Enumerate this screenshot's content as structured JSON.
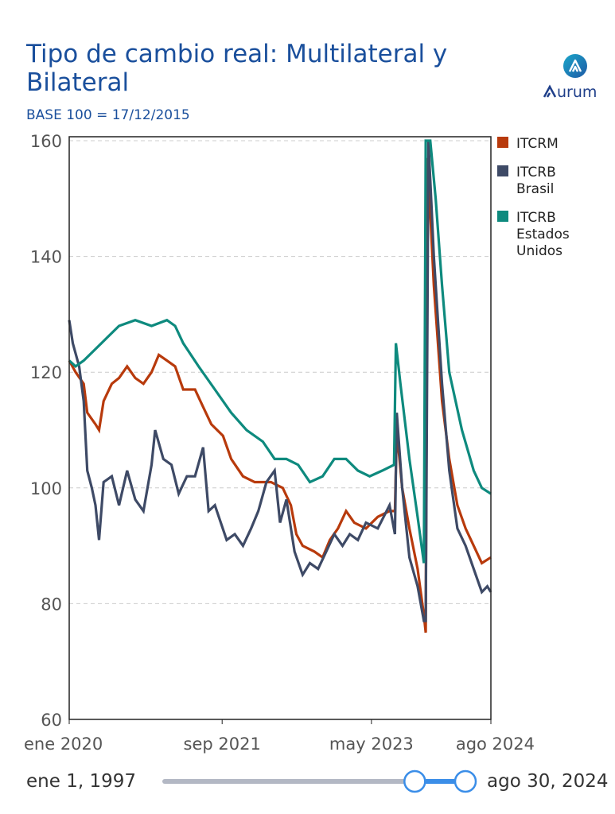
{
  "title": "Tipo de cambio real: Multilateral y Bilateral",
  "subtitle": "BASE 100 = 17/12/2015",
  "logo": {
    "text": "Aurum",
    "icon": "aurum-logo-icon"
  },
  "slider": {
    "start_label": "ene 1, 1997",
    "end_label": "ago 30, 2024",
    "range_min": 1997.0,
    "range_max": 2024.66,
    "handle_low": 2020.0,
    "handle_high": 2024.66
  },
  "chart_data": {
    "type": "line",
    "title": "Tipo de cambio real: Multilateral y Bilateral",
    "xlabel": "",
    "ylabel": "",
    "xlim": [
      2020.0,
      2024.66
    ],
    "ylim": [
      60,
      160
    ],
    "yticks": [
      60,
      80,
      100,
      120,
      140,
      160
    ],
    "xticks": [
      {
        "value": 2020.0,
        "label": "ene 2020"
      },
      {
        "value": 2021.69,
        "label": "sep 2021"
      },
      {
        "value": 2023.34,
        "label": "may 2023"
      },
      {
        "value": 2024.66,
        "label": "ago 2024"
      }
    ],
    "grid": true,
    "legend_position": "right",
    "series": [
      {
        "name": "ITCRM",
        "legend": [
          "ITCRM"
        ],
        "color": "#b83a0c",
        "points": [
          [
            2020.0,
            122
          ],
          [
            2020.07,
            120
          ],
          [
            2020.16,
            118
          ],
          [
            2020.2,
            113
          ],
          [
            2020.29,
            111
          ],
          [
            2020.33,
            110
          ],
          [
            2020.38,
            115
          ],
          [
            2020.47,
            118
          ],
          [
            2020.55,
            119
          ],
          [
            2020.64,
            121
          ],
          [
            2020.73,
            119
          ],
          [
            2020.82,
            118
          ],
          [
            2020.91,
            120
          ],
          [
            2020.99,
            123
          ],
          [
            2021.08,
            122
          ],
          [
            2021.17,
            121
          ],
          [
            2021.26,
            117
          ],
          [
            2021.39,
            117
          ],
          [
            2021.48,
            114
          ],
          [
            2021.57,
            111
          ],
          [
            2021.7,
            109
          ],
          [
            2021.79,
            105
          ],
          [
            2021.92,
            102
          ],
          [
            2022.05,
            101
          ],
          [
            2022.23,
            101
          ],
          [
            2022.36,
            100
          ],
          [
            2022.45,
            97
          ],
          [
            2022.51,
            92
          ],
          [
            2022.58,
            90
          ],
          [
            2022.71,
            89
          ],
          [
            2022.8,
            88
          ],
          [
            2022.88,
            91
          ],
          [
            2022.97,
            93
          ],
          [
            2023.06,
            96
          ],
          [
            2023.15,
            94
          ],
          [
            2023.28,
            93
          ],
          [
            2023.41,
            95
          ],
          [
            2023.54,
            96
          ],
          [
            2023.6,
            96
          ],
          [
            2023.62,
            110
          ],
          [
            2023.68,
            100
          ],
          [
            2023.76,
            93
          ],
          [
            2023.85,
            86
          ],
          [
            2023.92,
            78
          ],
          [
            2023.94,
            75
          ],
          [
            2023.96,
            157
          ],
          [
            2024.03,
            135
          ],
          [
            2024.12,
            115
          ],
          [
            2024.2,
            105
          ],
          [
            2024.29,
            97
          ],
          [
            2024.38,
            93
          ],
          [
            2024.47,
            90
          ],
          [
            2024.56,
            87
          ],
          [
            2024.66,
            88
          ]
        ]
      },
      {
        "name": "ITCRB Brasil",
        "legend": [
          "ITCRB",
          "Brasil"
        ],
        "color": "#3e4a66",
        "points": [
          [
            2020.0,
            129
          ],
          [
            2020.04,
            125
          ],
          [
            2020.11,
            121
          ],
          [
            2020.16,
            115
          ],
          [
            2020.2,
            103
          ],
          [
            2020.25,
            100
          ],
          [
            2020.29,
            97
          ],
          [
            2020.33,
            91
          ],
          [
            2020.38,
            101
          ],
          [
            2020.47,
            102
          ],
          [
            2020.55,
            97
          ],
          [
            2020.64,
            103
          ],
          [
            2020.73,
            98
          ],
          [
            2020.82,
            96
          ],
          [
            2020.91,
            104
          ],
          [
            2020.95,
            110
          ],
          [
            2021.04,
            105
          ],
          [
            2021.13,
            104
          ],
          [
            2021.21,
            99
          ],
          [
            2021.3,
            102
          ],
          [
            2021.39,
            102
          ],
          [
            2021.48,
            107
          ],
          [
            2021.54,
            96
          ],
          [
            2021.61,
            97
          ],
          [
            2021.74,
            91
          ],
          [
            2021.83,
            92
          ],
          [
            2021.92,
            90
          ],
          [
            2022.01,
            93
          ],
          [
            2022.09,
            96
          ],
          [
            2022.18,
            101
          ],
          [
            2022.27,
            103
          ],
          [
            2022.33,
            94
          ],
          [
            2022.4,
            98
          ],
          [
            2022.49,
            89
          ],
          [
            2022.58,
            85
          ],
          [
            2022.66,
            87
          ],
          [
            2022.75,
            86
          ],
          [
            2022.84,
            89
          ],
          [
            2022.93,
            92
          ],
          [
            2023.02,
            90
          ],
          [
            2023.1,
            92
          ],
          [
            2023.19,
            91
          ],
          [
            2023.28,
            94
          ],
          [
            2023.41,
            93
          ],
          [
            2023.54,
            97
          ],
          [
            2023.6,
            92
          ],
          [
            2023.62,
            113
          ],
          [
            2023.68,
            100
          ],
          [
            2023.76,
            88
          ],
          [
            2023.85,
            83
          ],
          [
            2023.92,
            77
          ],
          [
            2023.94,
            77
          ],
          [
            2023.97,
            160
          ],
          [
            2024.03,
            140
          ],
          [
            2024.12,
            118
          ],
          [
            2024.2,
            103
          ],
          [
            2024.29,
            93
          ],
          [
            2024.38,
            90
          ],
          [
            2024.47,
            86
          ],
          [
            2024.56,
            82
          ],
          [
            2024.62,
            83
          ],
          [
            2024.66,
            82
          ]
        ]
      },
      {
        "name": "ITCRB Estados Unidos",
        "legend": [
          "ITCRB",
          "Estados",
          "Unidos"
        ],
        "color": "#0e8a7e",
        "points": [
          [
            2020.0,
            122
          ],
          [
            2020.07,
            121
          ],
          [
            2020.16,
            122
          ],
          [
            2020.29,
            124
          ],
          [
            2020.42,
            126
          ],
          [
            2020.55,
            128
          ],
          [
            2020.73,
            129
          ],
          [
            2020.91,
            128
          ],
          [
            2021.08,
            129
          ],
          [
            2021.17,
            128
          ],
          [
            2021.26,
            125
          ],
          [
            2021.43,
            121
          ],
          [
            2021.61,
            117
          ],
          [
            2021.79,
            113
          ],
          [
            2021.96,
            110
          ],
          [
            2022.14,
            108
          ],
          [
            2022.27,
            105
          ],
          [
            2022.4,
            105
          ],
          [
            2022.53,
            104
          ],
          [
            2022.66,
            101
          ],
          [
            2022.8,
            102
          ],
          [
            2022.93,
            105
          ],
          [
            2023.06,
            105
          ],
          [
            2023.19,
            103
          ],
          [
            2023.32,
            102
          ],
          [
            2023.46,
            103
          ],
          [
            2023.59,
            104
          ],
          [
            2023.61,
            125
          ],
          [
            2023.66,
            118
          ],
          [
            2023.76,
            105
          ],
          [
            2023.85,
            95
          ],
          [
            2023.92,
            87
          ],
          [
            2023.94,
            160
          ],
          [
            2023.99,
            160
          ],
          [
            2024.05,
            150
          ],
          [
            2024.12,
            135
          ],
          [
            2024.2,
            120
          ],
          [
            2024.34,
            110
          ],
          [
            2024.47,
            103
          ],
          [
            2024.56,
            100
          ],
          [
            2024.66,
            99
          ]
        ]
      }
    ]
  }
}
